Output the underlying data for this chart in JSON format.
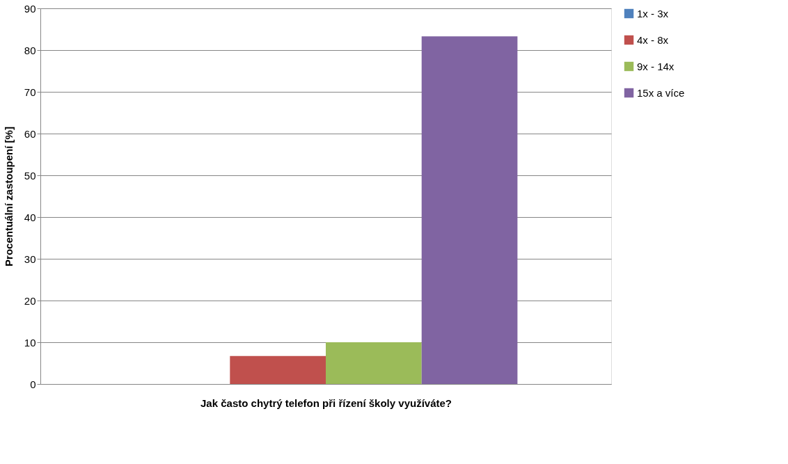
{
  "chart_data": {
    "type": "bar",
    "xlabel": "Jak často chytrý telefon při řízení školy využíváte?",
    "ylabel": "Procentuální zastoupení [%]",
    "categories": [
      null
    ],
    "series": [
      {
        "name": "1x - 3x",
        "color": "#4f81bd",
        "values": [
          0
        ]
      },
      {
        "name": "4x - 8x",
        "color": "#c0504d",
        "values": [
          6.7
        ]
      },
      {
        "name": "9x - 14x",
        "color": "#9bbb59",
        "values": [
          10
        ]
      },
      {
        "name": "15x a více",
        "color": "#8064a2",
        "values": [
          83.3
        ]
      }
    ],
    "ylim": [
      0,
      90
    ],
    "yticks": [
      0,
      10,
      20,
      30,
      40,
      50,
      60,
      70,
      80,
      90
    ],
    "grid": "y",
    "legend": "right"
  }
}
